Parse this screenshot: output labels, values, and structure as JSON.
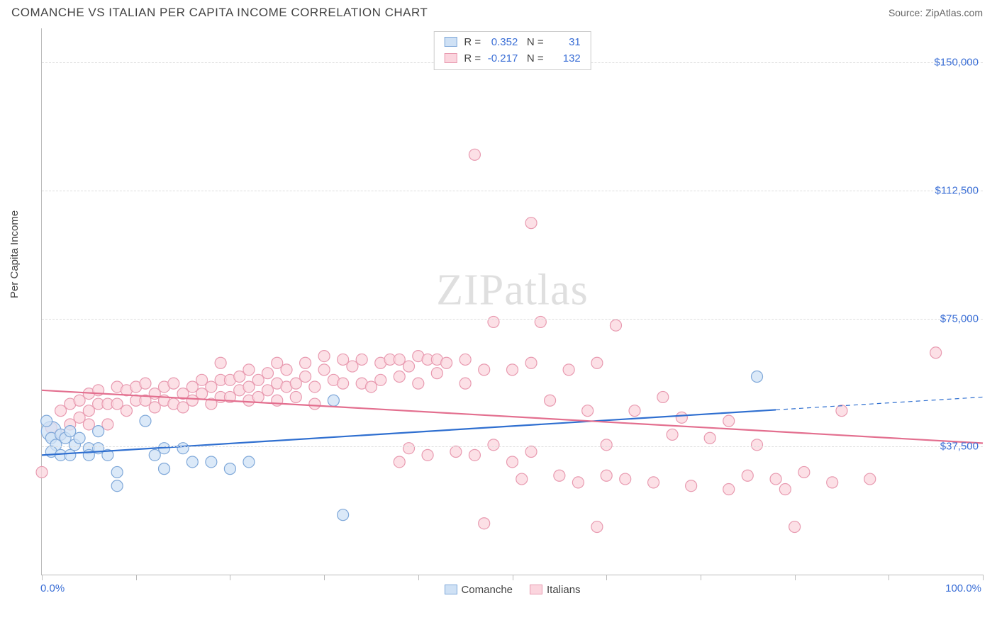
{
  "header": {
    "title": "COMANCHE VS ITALIAN PER CAPITA INCOME CORRELATION CHART",
    "source_prefix": "Source: ",
    "source_name": "ZipAtlas.com"
  },
  "watermark": {
    "bold": "ZIP",
    "light": "atlas"
  },
  "chart": {
    "type": "scatter",
    "ylabel": "Per Capita Income",
    "xlim": [
      0,
      100
    ],
    "ylim": [
      0,
      160000
    ],
    "x_min_label": "0.0%",
    "x_max_label": "100.0%",
    "xtick_positions": [
      0,
      10,
      20,
      30,
      40,
      50,
      60,
      70,
      80,
      90,
      100
    ],
    "yticks": [
      {
        "value": 37500,
        "label": "$37,500"
      },
      {
        "value": 75000,
        "label": "$75,000"
      },
      {
        "value": 112500,
        "label": "$112,500"
      },
      {
        "value": 150000,
        "label": "$150,000"
      }
    ],
    "background_color": "#ffffff",
    "grid_color": "#dddddd",
    "axis_color": "#bbbbbb",
    "tick_label_color": "#3b6fd6",
    "series": [
      {
        "key": "comanche",
        "label": "Comanche",
        "fill": "#cfe1f5",
        "stroke": "#7fa8d9",
        "marker_radius": 8,
        "stats": {
          "R": "0.352",
          "N": "31"
        },
        "trend": {
          "color": "#2f6fd0",
          "width": 2.2,
          "y_start": 35000,
          "y_end": 52000,
          "dash_from_x": 78
        },
        "points": [
          {
            "x": 1,
            "y": 42000,
            "r": 14
          },
          {
            "x": 0.5,
            "y": 45000
          },
          {
            "x": 1,
            "y": 40000
          },
          {
            "x": 1.5,
            "y": 38000
          },
          {
            "x": 1,
            "y": 36000
          },
          {
            "x": 2,
            "y": 41000
          },
          {
            "x": 2,
            "y": 35000
          },
          {
            "x": 2.5,
            "y": 40000
          },
          {
            "x": 3,
            "y": 42000
          },
          {
            "x": 3,
            "y": 35000
          },
          {
            "x": 3.5,
            "y": 38000
          },
          {
            "x": 4,
            "y": 40000
          },
          {
            "x": 5,
            "y": 37000
          },
          {
            "x": 5,
            "y": 35000
          },
          {
            "x": 6,
            "y": 42000
          },
          {
            "x": 6,
            "y": 37000
          },
          {
            "x": 7,
            "y": 35000
          },
          {
            "x": 8,
            "y": 30000
          },
          {
            "x": 8,
            "y": 26000
          },
          {
            "x": 11,
            "y": 45000
          },
          {
            "x": 12,
            "y": 35000
          },
          {
            "x": 13,
            "y": 37000
          },
          {
            "x": 13,
            "y": 31000
          },
          {
            "x": 15,
            "y": 37000
          },
          {
            "x": 16,
            "y": 33000
          },
          {
            "x": 18,
            "y": 33000
          },
          {
            "x": 20,
            "y": 31000
          },
          {
            "x": 22,
            "y": 33000
          },
          {
            "x": 31,
            "y": 51000
          },
          {
            "x": 32,
            "y": 17500
          },
          {
            "x": 76,
            "y": 58000
          }
        ]
      },
      {
        "key": "italians",
        "label": "Italians",
        "fill": "#fbd5de",
        "stroke": "#e89ab0",
        "marker_radius": 8,
        "stats": {
          "R": "-0.217",
          "N": "132"
        },
        "trend": {
          "color": "#e36f8f",
          "width": 2.2,
          "y_start": 54000,
          "y_end": 38500
        },
        "points": [
          {
            "x": 0,
            "y": 30000
          },
          {
            "x": 1,
            "y": 43000
          },
          {
            "x": 2,
            "y": 41000
          },
          {
            "x": 2,
            "y": 48000
          },
          {
            "x": 3,
            "y": 50000
          },
          {
            "x": 3,
            "y": 44000
          },
          {
            "x": 4,
            "y": 51000
          },
          {
            "x": 4,
            "y": 46000
          },
          {
            "x": 5,
            "y": 53000
          },
          {
            "x": 5,
            "y": 48000
          },
          {
            "x": 5,
            "y": 44000
          },
          {
            "x": 6,
            "y": 50000
          },
          {
            "x": 6,
            "y": 54000
          },
          {
            "x": 7,
            "y": 50000
          },
          {
            "x": 7,
            "y": 44000
          },
          {
            "x": 8,
            "y": 55000
          },
          {
            "x": 8,
            "y": 50000
          },
          {
            "x": 9,
            "y": 54000
          },
          {
            "x": 9,
            "y": 48000
          },
          {
            "x": 10,
            "y": 51000
          },
          {
            "x": 10,
            "y": 55000
          },
          {
            "x": 11,
            "y": 51000
          },
          {
            "x": 11,
            "y": 56000
          },
          {
            "x": 12,
            "y": 49000
          },
          {
            "x": 12,
            "y": 53000
          },
          {
            "x": 13,
            "y": 55000
          },
          {
            "x": 13,
            "y": 51000
          },
          {
            "x": 14,
            "y": 50000
          },
          {
            "x": 14,
            "y": 56000
          },
          {
            "x": 15,
            "y": 53000
          },
          {
            "x": 15,
            "y": 49000
          },
          {
            "x": 16,
            "y": 55000
          },
          {
            "x": 16,
            "y": 51000
          },
          {
            "x": 17,
            "y": 57000
          },
          {
            "x": 17,
            "y": 53000
          },
          {
            "x": 18,
            "y": 50000
          },
          {
            "x": 18,
            "y": 55000
          },
          {
            "x": 19,
            "y": 62000
          },
          {
            "x": 19,
            "y": 57000
          },
          {
            "x": 19,
            "y": 52000
          },
          {
            "x": 20,
            "y": 52000
          },
          {
            "x": 20,
            "y": 57000
          },
          {
            "x": 21,
            "y": 58000
          },
          {
            "x": 21,
            "y": 54000
          },
          {
            "x": 22,
            "y": 60000
          },
          {
            "x": 22,
            "y": 55000
          },
          {
            "x": 22,
            "y": 51000
          },
          {
            "x": 23,
            "y": 52000
          },
          {
            "x": 23,
            "y": 57000
          },
          {
            "x": 24,
            "y": 59000
          },
          {
            "x": 24,
            "y": 54000
          },
          {
            "x": 25,
            "y": 62000
          },
          {
            "x": 25,
            "y": 56000
          },
          {
            "x": 25,
            "y": 51000
          },
          {
            "x": 26,
            "y": 55000
          },
          {
            "x": 26,
            "y": 60000
          },
          {
            "x": 27,
            "y": 56000
          },
          {
            "x": 27,
            "y": 52000
          },
          {
            "x": 28,
            "y": 58000
          },
          {
            "x": 28,
            "y": 62000
          },
          {
            "x": 29,
            "y": 55000
          },
          {
            "x": 29,
            "y": 50000
          },
          {
            "x": 30,
            "y": 60000
          },
          {
            "x": 30,
            "y": 64000
          },
          {
            "x": 31,
            "y": 57000
          },
          {
            "x": 32,
            "y": 63000
          },
          {
            "x": 32,
            "y": 56000
          },
          {
            "x": 33,
            "y": 61000
          },
          {
            "x": 34,
            "y": 63000
          },
          {
            "x": 34,
            "y": 56000
          },
          {
            "x": 35,
            "y": 55000
          },
          {
            "x": 36,
            "y": 57000
          },
          {
            "x": 36,
            "y": 62000
          },
          {
            "x": 37,
            "y": 63000
          },
          {
            "x": 38,
            "y": 33000
          },
          {
            "x": 38,
            "y": 58000
          },
          {
            "x": 38,
            "y": 63000
          },
          {
            "x": 39,
            "y": 37000
          },
          {
            "x": 39,
            "y": 61000
          },
          {
            "x": 40,
            "y": 64000
          },
          {
            "x": 40,
            "y": 56000
          },
          {
            "x": 41,
            "y": 63000
          },
          {
            "x": 41,
            "y": 35000
          },
          {
            "x": 42,
            "y": 59000
          },
          {
            "x": 42,
            "y": 63000
          },
          {
            "x": 43,
            "y": 62000
          },
          {
            "x": 44,
            "y": 36000
          },
          {
            "x": 45,
            "y": 56000
          },
          {
            "x": 45,
            "y": 63000
          },
          {
            "x": 46,
            "y": 35000
          },
          {
            "x": 46,
            "y": 123000
          },
          {
            "x": 47,
            "y": 15000
          },
          {
            "x": 47,
            "y": 60000
          },
          {
            "x": 48,
            "y": 74000
          },
          {
            "x": 48,
            "y": 38000
          },
          {
            "x": 50,
            "y": 60000
          },
          {
            "x": 50,
            "y": 33000
          },
          {
            "x": 51,
            "y": 28000
          },
          {
            "x": 52,
            "y": 103000
          },
          {
            "x": 52,
            "y": 36000
          },
          {
            "x": 52,
            "y": 62000
          },
          {
            "x": 53,
            "y": 74000
          },
          {
            "x": 54,
            "y": 51000
          },
          {
            "x": 55,
            "y": 29000
          },
          {
            "x": 56,
            "y": 60000
          },
          {
            "x": 57,
            "y": 27000
          },
          {
            "x": 58,
            "y": 48000
          },
          {
            "x": 59,
            "y": 14000
          },
          {
            "x": 59,
            "y": 62000
          },
          {
            "x": 60,
            "y": 29000
          },
          {
            "x": 60,
            "y": 38000
          },
          {
            "x": 61,
            "y": 73000
          },
          {
            "x": 62,
            "y": 28000
          },
          {
            "x": 63,
            "y": 48000
          },
          {
            "x": 65,
            "y": 27000
          },
          {
            "x": 66,
            "y": 52000
          },
          {
            "x": 67,
            "y": 41000
          },
          {
            "x": 68,
            "y": 46000
          },
          {
            "x": 69,
            "y": 26000
          },
          {
            "x": 71,
            "y": 40000
          },
          {
            "x": 73,
            "y": 45000
          },
          {
            "x": 73,
            "y": 25000
          },
          {
            "x": 75,
            "y": 29000
          },
          {
            "x": 76,
            "y": 38000
          },
          {
            "x": 78,
            "y": 28000
          },
          {
            "x": 79,
            "y": 25000
          },
          {
            "x": 80,
            "y": 14000
          },
          {
            "x": 81,
            "y": 30000
          },
          {
            "x": 84,
            "y": 27000
          },
          {
            "x": 85,
            "y": 48000
          },
          {
            "x": 88,
            "y": 28000
          },
          {
            "x": 95,
            "y": 65000
          }
        ]
      }
    ]
  }
}
